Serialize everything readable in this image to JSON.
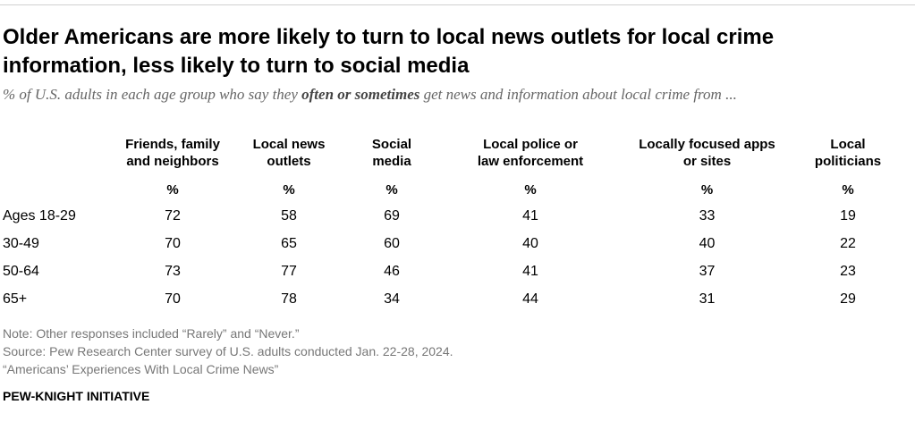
{
  "title_line1": "Older Americans are more likely to turn to local news outlets for local crime",
  "title_line2": "information, less likely to turn to social media",
  "subtitle_pre": "% of U.S. adults in each age group who say they ",
  "subtitle_bold": "often or sometimes",
  "subtitle_post": " get news and information about local crime from ...",
  "chart_data": {
    "type": "table",
    "title": "Older Americans are more likely to turn to local news outlets for local crime information, less likely to turn to social media",
    "unit_label": "%",
    "columns": [
      {
        "line1": "Friends, family",
        "line2": "and neighbors"
      },
      {
        "line1": "Local news",
        "line2": "outlets"
      },
      {
        "line1": "Social",
        "line2": "media"
      },
      {
        "line1": "Local police or",
        "line2": "law enforcement"
      },
      {
        "line1": "Locally focused apps",
        "line2": "or sites"
      },
      {
        "line1": "Local",
        "line2": "politicians"
      }
    ],
    "rows": [
      {
        "label": "Ages 18-29",
        "values": [
          "72",
          "58",
          "69",
          "41",
          "33",
          "19"
        ]
      },
      {
        "label": "30-49",
        "values": [
          "70",
          "65",
          "60",
          "40",
          "40",
          "22"
        ]
      },
      {
        "label": "50-64",
        "values": [
          "73",
          "77",
          "46",
          "41",
          "37",
          "23"
        ]
      },
      {
        "label": "65+",
        "values": [
          "70",
          "78",
          "34",
          "44",
          "31",
          "29"
        ]
      }
    ]
  },
  "notes": {
    "note": "Note: Other responses included “Rarely” and “Never.”",
    "source": "Source: Pew Research Center survey of U.S. adults conducted Jan. 22-28, 2024.",
    "report": "“Americans’ Experiences With Local Crime News”"
  },
  "brand": "PEW-KNIGHT INITIATIVE"
}
